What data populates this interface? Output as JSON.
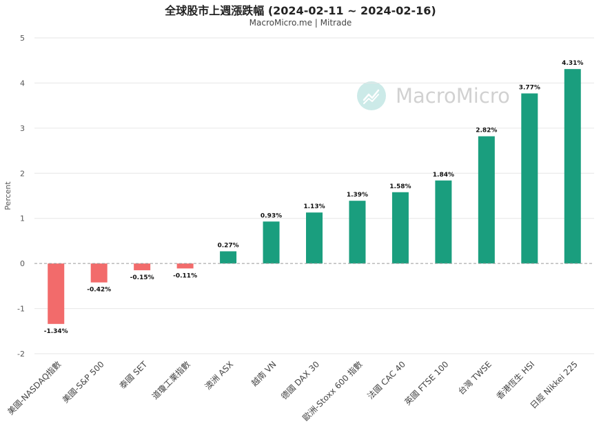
{
  "chart_data": {
    "type": "bar",
    "title": "全球股市上週漲跌幅 (2024-02-11 ~ 2024-02-16)",
    "subtitle": "MacroMicro.me | Mitrade",
    "ylabel": "Percent",
    "ylim": [
      -2,
      5
    ],
    "yticks": [
      "-2",
      "-1",
      "0",
      "1",
      "2",
      "3",
      "4",
      "5"
    ],
    "grid": true,
    "categories": [
      "美國-NASDAQ指數",
      "美國-S&P 500",
      "泰國 SET",
      "道瓊工業指數",
      "澳洲 ASX",
      "越南 VN",
      "德國 DAX 30",
      "歐洲-Stoxx 600 指數",
      "法國 CAC 40",
      "英國 FTSE 100",
      "台灣 TWSE",
      "香港恆生 HSI",
      "日經 Nikkei 225"
    ],
    "values": [
      -1.34,
      -0.42,
      -0.15,
      -0.11,
      0.27,
      0.93,
      1.13,
      1.39,
      1.58,
      1.84,
      2.82,
      3.77,
      4.31
    ],
    "data_labels": [
      "-1.34%",
      "-0.42%",
      "-0.15%",
      "-0.11%",
      "0.27%",
      "0.93%",
      "1.13%",
      "1.39%",
      "1.58%",
      "1.84%",
      "2.82%",
      "3.77%",
      "4.31%"
    ],
    "colors": {
      "positive": "#1a9e7e",
      "negative": "#f26b6b",
      "grid": "#e6e6e6",
      "zero_line": "#999999"
    }
  },
  "watermark": {
    "text": "MacroMicro",
    "icon": "chart-line-icon"
  }
}
